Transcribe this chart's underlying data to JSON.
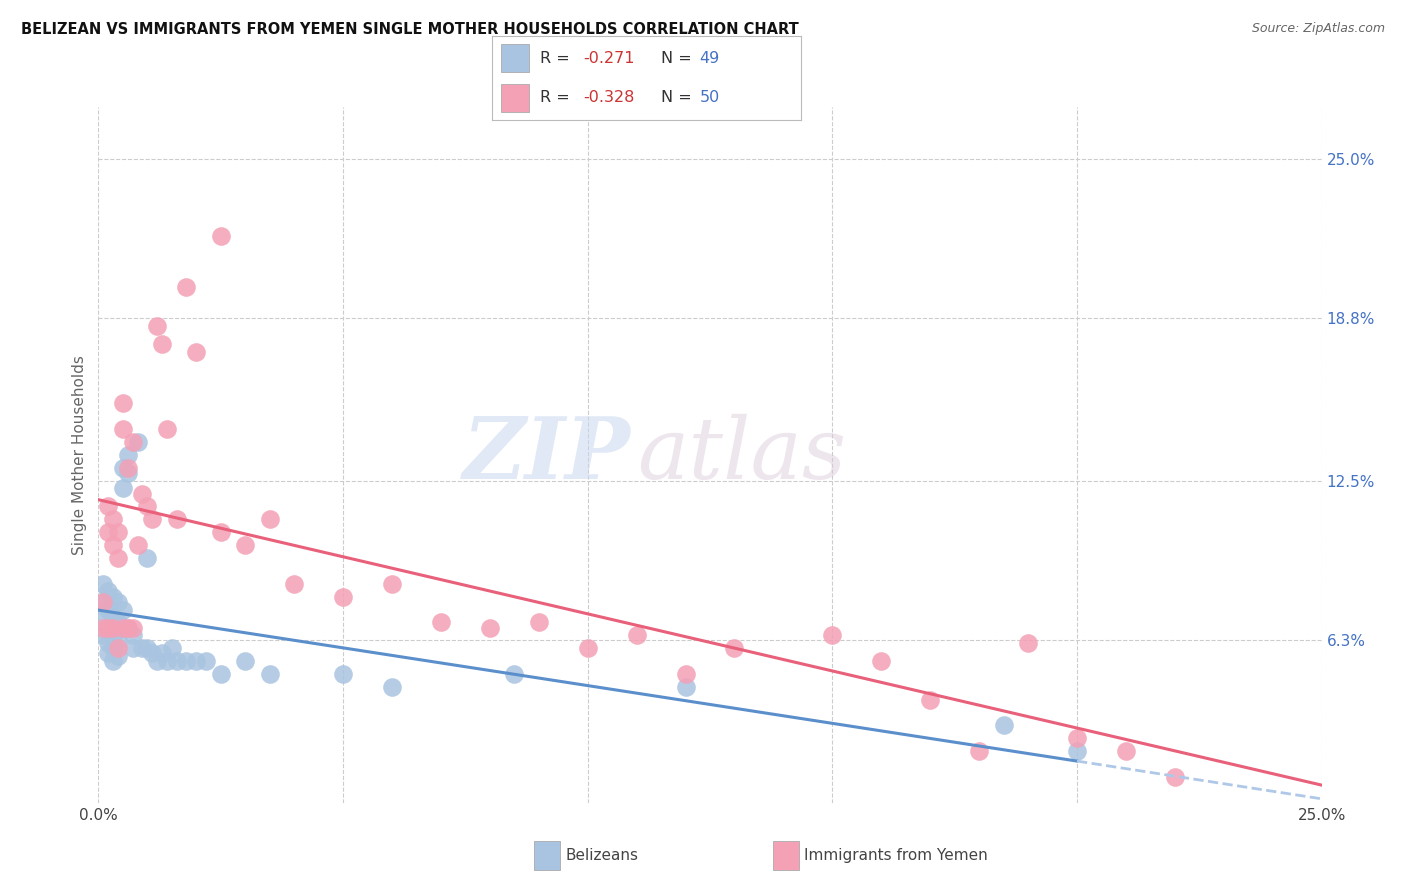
{
  "title": "BELIZEAN VS IMMIGRANTS FROM YEMEN SINGLE MOTHER HOUSEHOLDS CORRELATION CHART",
  "source": "Source: ZipAtlas.com",
  "ylabel": "Single Mother Households",
  "ytick_labels": [
    "25.0%",
    "18.8%",
    "12.5%",
    "6.3%"
  ],
  "ytick_values": [
    0.25,
    0.188,
    0.125,
    0.063
  ],
  "xlim": [
    0.0,
    0.25
  ],
  "ylim": [
    0.0,
    0.27
  ],
  "legend_blue_R": "-0.271",
  "legend_blue_N": "49",
  "legend_pink_R": "-0.328",
  "legend_pink_N": "50",
  "blue_color": "#a8c4e0",
  "pink_color": "#f4a0b5",
  "trendline_blue": "#5b8fcc",
  "trendline_pink": "#e8607a",
  "trendline_dashed_color": "#b0c8e8",
  "watermark_zip": "ZIP",
  "watermark_atlas": "atlas",
  "blue_scatter_x": [
    0.001,
    0.001,
    0.001,
    0.001,
    0.002,
    0.002,
    0.002,
    0.002,
    0.002,
    0.003,
    0.003,
    0.003,
    0.003,
    0.003,
    0.004,
    0.004,
    0.004,
    0.004,
    0.005,
    0.005,
    0.005,
    0.005,
    0.006,
    0.006,
    0.006,
    0.007,
    0.007,
    0.008,
    0.009,
    0.01,
    0.01,
    0.011,
    0.012,
    0.013,
    0.014,
    0.015,
    0.016,
    0.018,
    0.02,
    0.022,
    0.025,
    0.03,
    0.035,
    0.05,
    0.06,
    0.085,
    0.12,
    0.185,
    0.2
  ],
  "blue_scatter_y": [
    0.085,
    0.078,
    0.072,
    0.065,
    0.082,
    0.075,
    0.068,
    0.062,
    0.058,
    0.08,
    0.072,
    0.065,
    0.06,
    0.055,
    0.078,
    0.07,
    0.063,
    0.057,
    0.13,
    0.122,
    0.075,
    0.068,
    0.135,
    0.128,
    0.068,
    0.065,
    0.06,
    0.14,
    0.06,
    0.095,
    0.06,
    0.058,
    0.055,
    0.058,
    0.055,
    0.06,
    0.055,
    0.055,
    0.055,
    0.055,
    0.05,
    0.055,
    0.05,
    0.05,
    0.045,
    0.05,
    0.045,
    0.03,
    0.02
  ],
  "pink_scatter_x": [
    0.001,
    0.001,
    0.002,
    0.002,
    0.002,
    0.003,
    0.003,
    0.003,
    0.004,
    0.004,
    0.004,
    0.005,
    0.005,
    0.005,
    0.006,
    0.006,
    0.007,
    0.007,
    0.008,
    0.009,
    0.01,
    0.011,
    0.012,
    0.013,
    0.014,
    0.016,
    0.018,
    0.02,
    0.025,
    0.025,
    0.03,
    0.035,
    0.04,
    0.05,
    0.06,
    0.07,
    0.08,
    0.09,
    0.1,
    0.11,
    0.12,
    0.13,
    0.15,
    0.16,
    0.17,
    0.18,
    0.19,
    0.2,
    0.21,
    0.22
  ],
  "pink_scatter_y": [
    0.078,
    0.068,
    0.115,
    0.105,
    0.068,
    0.11,
    0.1,
    0.068,
    0.105,
    0.095,
    0.06,
    0.155,
    0.145,
    0.068,
    0.13,
    0.068,
    0.14,
    0.068,
    0.1,
    0.12,
    0.115,
    0.11,
    0.185,
    0.178,
    0.145,
    0.11,
    0.2,
    0.175,
    0.22,
    0.105,
    0.1,
    0.11,
    0.085,
    0.08,
    0.085,
    0.07,
    0.068,
    0.07,
    0.06,
    0.065,
    0.05,
    0.06,
    0.065,
    0.055,
    0.04,
    0.02,
    0.062,
    0.025,
    0.02,
    0.01
  ]
}
